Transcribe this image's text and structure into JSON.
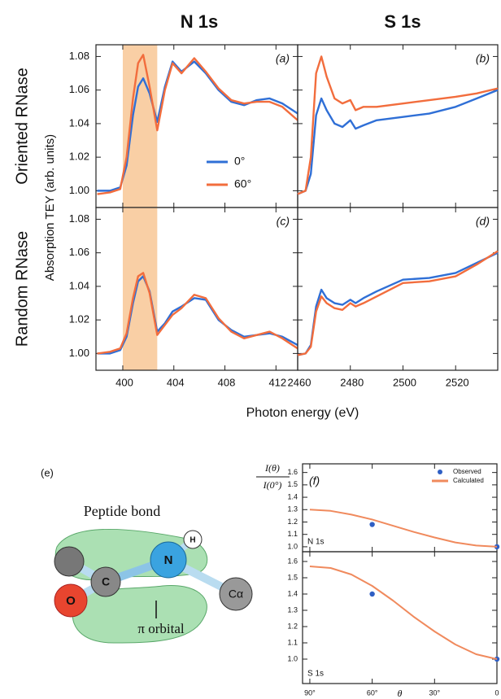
{
  "figure": {
    "columns": [
      "N 1s",
      "S 1s"
    ],
    "rows": [
      "Oriented RNase",
      "Random RNase"
    ],
    "ylabel": "Absorption TEY (arb. units)",
    "xlabel": "Photon energy (eV)"
  },
  "diagram": {
    "label": "(e)",
    "title": "Peptide bond",
    "atoms": {
      "o": "O",
      "c": "C",
      "n": "N",
      "h": "H",
      "ca": "Cα"
    },
    "orbital": "π orbital"
  },
  "chart_data": [
    {
      "type": "line",
      "label": "(a)",
      "legend": "lower right",
      "highlight": {
        "range": [
          400,
          402.7
        ],
        "color": "#f9cfa5"
      },
      "xlim": [
        397.9,
        413.7
      ],
      "ylim": [
        0.99,
        1.087
      ],
      "xticks": [
        400,
        404,
        408,
        412
      ],
      "yticks": [
        {
          "value": 1,
          "label": "1.00"
        },
        1.02,
        1.04,
        1.06,
        1.08
      ],
      "x": [
        398,
        399,
        399.8,
        400.3,
        400.8,
        401.2,
        401.6,
        402.1,
        402.7,
        403.3,
        403.9,
        404.6,
        405.6,
        406.5,
        407.5,
        408.5,
        409.5,
        410.5,
        411.5,
        412.5,
        413.7
      ],
      "series": [
        {
          "name": "0°",
          "color": "#2f6fd6",
          "values": [
            1.0,
            1.0,
            1.002,
            1.015,
            1.045,
            1.062,
            1.067,
            1.058,
            1.041,
            1.062,
            1.077,
            1.071,
            1.077,
            1.07,
            1.06,
            1.053,
            1.051,
            1.054,
            1.055,
            1.052,
            1.046
          ]
        },
        {
          "name": "60°",
          "color": "#f26d3d",
          "values": [
            0.998,
            0.999,
            1.001,
            1.02,
            1.055,
            1.076,
            1.081,
            1.062,
            1.036,
            1.06,
            1.076,
            1.07,
            1.079,
            1.071,
            1.061,
            1.054,
            1.052,
            1.053,
            1.053,
            1.05,
            1.042
          ]
        }
      ]
    },
    {
      "type": "line",
      "label": "(b)",
      "xlim": [
        2460,
        2536
      ],
      "ylim": [
        0.99,
        1.087
      ],
      "xticks": [
        2460,
        2480,
        2500,
        2520
      ],
      "yticks": [
        {
          "value": 1,
          "label": "1.00"
        },
        1.02,
        1.04,
        1.06,
        1.08
      ],
      "x": [
        2460,
        2463,
        2465,
        2467,
        2469,
        2471,
        2474,
        2477,
        2480,
        2482,
        2485,
        2490,
        2500,
        2510,
        2520,
        2528,
        2536
      ],
      "series": [
        {
          "color": "#2f6fd6",
          "values": [
            0.998,
            1.0,
            1.01,
            1.045,
            1.055,
            1.048,
            1.04,
            1.038,
            1.042,
            1.037,
            1.039,
            1.042,
            1.044,
            1.046,
            1.05,
            1.055,
            1.06
          ]
        },
        {
          "color": "#f26d3d",
          "values": [
            0.998,
            1.0,
            1.02,
            1.07,
            1.08,
            1.068,
            1.055,
            1.052,
            1.054,
            1.048,
            1.05,
            1.05,
            1.052,
            1.054,
            1.056,
            1.058,
            1.061
          ]
        }
      ]
    },
    {
      "type": "line",
      "label": "(c)",
      "highlight": {
        "range": [
          400,
          402.7
        ],
        "color": "#f9cfa5"
      },
      "xlim": [
        397.9,
        413.7
      ],
      "ylim": [
        0.99,
        1.087
      ],
      "xticks": [
        400,
        404,
        408,
        412
      ],
      "yticks": [
        {
          "value": 1,
          "label": "1.00"
        },
        1.02,
        1.04,
        1.06,
        1.08
      ],
      "x": [
        398,
        399,
        399.8,
        400.3,
        400.8,
        401.2,
        401.6,
        402.1,
        402.7,
        403.3,
        403.9,
        404.6,
        405.6,
        406.5,
        407.5,
        408.5,
        409.5,
        410.5,
        411.5,
        412.5,
        413.7
      ],
      "series": [
        {
          "color": "#2f6fd6",
          "values": [
            1.0,
            1.0,
            1.002,
            1.01,
            1.03,
            1.043,
            1.046,
            1.037,
            1.013,
            1.018,
            1.025,
            1.028,
            1.033,
            1.032,
            1.02,
            1.014,
            1.01,
            1.011,
            1.012,
            1.01,
            1.005
          ]
        },
        {
          "color": "#f26d3d",
          "values": [
            1.0,
            1.001,
            1.003,
            1.012,
            1.033,
            1.046,
            1.048,
            1.036,
            1.011,
            1.017,
            1.023,
            1.027,
            1.035,
            1.033,
            1.021,
            1.013,
            1.009,
            1.011,
            1.013,
            1.009,
            1.003
          ]
        }
      ]
    },
    {
      "type": "line",
      "label": "(d)",
      "xlim": [
        2460,
        2536
      ],
      "ylim": [
        0.99,
        1.087
      ],
      "xticks": [
        2460,
        2480,
        2500,
        2520
      ],
      "yticks": [
        {
          "value": 1,
          "label": "1.00"
        },
        1.02,
        1.04,
        1.06,
        1.08
      ],
      "x": [
        2460,
        2463,
        2465,
        2467,
        2469,
        2471,
        2474,
        2477,
        2480,
        2482,
        2485,
        2490,
        2500,
        2510,
        2520,
        2528,
        2536
      ],
      "series": [
        {
          "color": "#2f6fd6",
          "values": [
            0.999,
            1.0,
            1.005,
            1.028,
            1.038,
            1.033,
            1.03,
            1.029,
            1.032,
            1.03,
            1.033,
            1.037,
            1.044,
            1.045,
            1.048,
            1.054,
            1.06
          ]
        },
        {
          "color": "#f26d3d",
          "values": [
            0.999,
            1.0,
            1.004,
            1.025,
            1.034,
            1.03,
            1.027,
            1.026,
            1.03,
            1.028,
            1.03,
            1.034,
            1.042,
            1.043,
            1.046,
            1.053,
            1.061
          ]
        }
      ]
    },
    {
      "type": "line",
      "label": "(f)",
      "annotation": "N 1s",
      "legend": "upper right",
      "ylabel": {
        "numerator": "I(θ)",
        "denominator": "I(0°)"
      },
      "xlim": [
        93.5,
        0
      ],
      "ylim": [
        0.96,
        1.67
      ],
      "xticks": [
        {
          "value": 90,
          "label": "90°"
        },
        {
          "value": 60,
          "label": "60°"
        },
        {
          "value": 30,
          "label": "30°"
        },
        0
      ],
      "yticks": [
        {
          "value": 1,
          "label": "1.0"
        },
        1.1,
        1.2,
        1.3,
        1.4,
        1.5,
        1.6
      ],
      "series": [
        {
          "name": "Observed",
          "mode": "markers",
          "color": "#2f5fc4",
          "x": [
            60,
            0
          ],
          "values": [
            1.18,
            1.0
          ]
        },
        {
          "name": "Calculated",
          "color": "#f08a5d",
          "x": [
            90,
            80,
            70,
            60,
            50,
            40,
            30,
            20,
            10,
            0
          ],
          "values": [
            1.3,
            1.29,
            1.26,
            1.22,
            1.17,
            1.12,
            1.075,
            1.035,
            1.01,
            1.0
          ]
        }
      ]
    },
    {
      "type": "line",
      "annotation": "S 1s",
      "xlabel": "θ",
      "xlim": [
        93.5,
        0
      ],
      "ylim": [
        0.85,
        1.66
      ],
      "xticks": [
        {
          "value": 90,
          "label": "90°"
        },
        {
          "value": 60,
          "label": "60°"
        },
        {
          "value": 30,
          "label": "30°"
        },
        0
      ],
      "yticks": [
        {
          "value": 1,
          "label": "1.0"
        },
        1.1,
        1.2,
        1.3,
        1.4,
        1.5,
        1.6
      ],
      "series": [
        {
          "mode": "markers",
          "color": "#2f5fc4",
          "x": [
            60,
            0
          ],
          "values": [
            1.4,
            1.0
          ]
        },
        {
          "color": "#f08a5d",
          "x": [
            90,
            80,
            70,
            60,
            50,
            40,
            30,
            20,
            10,
            0
          ],
          "values": [
            1.57,
            1.56,
            1.52,
            1.45,
            1.36,
            1.26,
            1.17,
            1.09,
            1.03,
            1.0
          ]
        }
      ]
    }
  ]
}
